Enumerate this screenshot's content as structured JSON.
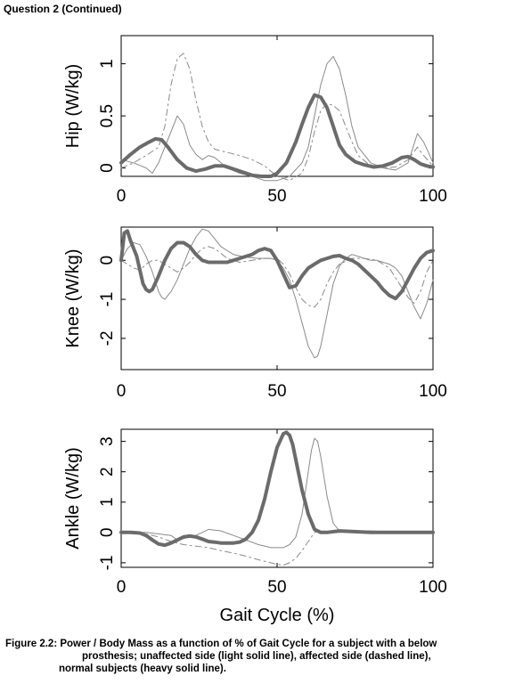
{
  "heading": "Question 2 (Continued)",
  "caption": {
    "line1": "Figure 2.2: Power / Body Mass as a function of % of Gait Cycle for a subject with a below",
    "line2": "prosthesis; unaffected side (light solid line), affected side (dashed line),",
    "line3": "normal subjects (heavy solid line)."
  },
  "colors": {
    "normal": "#6b6b6b",
    "unaffected": "#8a8a8a",
    "affected": "#8a8a8a"
  },
  "chart_data": [
    {
      "type": "line",
      "ylabel": "Hip (W/kg)",
      "xlabel": "",
      "xlim": [
        0,
        100
      ],
      "ylim": [
        -0.08,
        1.27
      ],
      "xticks": [
        0,
        50,
        100
      ],
      "xtick_labels": [
        "0",
        "50",
        "100"
      ],
      "yticks": [
        0,
        0.5,
        1
      ],
      "ytick_labels": [
        "0",
        "0.5",
        "1"
      ],
      "series": [
        {
          "key": "normal",
          "x": [
            0,
            3,
            6,
            9,
            11,
            13,
            15,
            18,
            21,
            24,
            27,
            30,
            33,
            36,
            39,
            42,
            45,
            48,
            50,
            53,
            56,
            58,
            60,
            62,
            64,
            66,
            68,
            70,
            72,
            75,
            78,
            81,
            84,
            87,
            90,
            92,
            94,
            96,
            98,
            100
          ],
          "values": [
            0.05,
            0.13,
            0.2,
            0.25,
            0.28,
            0.27,
            0.2,
            0.08,
            0.0,
            -0.03,
            -0.01,
            0.02,
            0.02,
            -0.01,
            -0.04,
            -0.07,
            -0.08,
            -0.08,
            -0.05,
            0.05,
            0.25,
            0.42,
            0.58,
            0.7,
            0.68,
            0.58,
            0.4,
            0.22,
            0.13,
            0.06,
            0.03,
            0.01,
            0.02,
            0.05,
            0.1,
            0.11,
            0.08,
            0.04,
            0.02,
            0.01
          ]
        },
        {
          "key": "unaffected",
          "x": [
            0,
            4,
            8,
            10,
            12,
            14,
            16,
            18,
            20,
            22,
            24,
            26,
            28,
            30,
            32,
            34,
            38,
            42,
            46,
            50,
            54,
            58,
            60,
            62,
            64,
            66,
            68,
            70,
            72,
            74,
            76,
            80,
            84,
            88,
            92,
            95,
            97,
            100
          ],
          "values": [
            0.08,
            0.05,
            0.0,
            -0.05,
            0.05,
            0.2,
            0.35,
            0.5,
            0.42,
            0.22,
            0.13,
            0.08,
            0.12,
            0.1,
            0.05,
            0.0,
            -0.05,
            -0.08,
            -0.12,
            -0.12,
            -0.08,
            0.05,
            0.2,
            0.5,
            0.8,
            1.0,
            1.07,
            0.95,
            0.7,
            0.4,
            0.2,
            0.05,
            0.0,
            -0.02,
            0.05,
            0.33,
            0.25,
            0.05
          ]
        },
        {
          "key": "affected",
          "x": [
            0,
            4,
            8,
            12,
            14,
            16,
            18,
            20,
            22,
            24,
            26,
            28,
            30,
            34,
            38,
            42,
            46,
            50,
            54,
            58,
            60,
            62,
            64,
            66,
            68,
            70,
            72,
            74,
            76,
            80,
            84,
            88,
            92,
            95,
            97,
            100
          ],
          "values": [
            0.0,
            0.05,
            0.12,
            0.2,
            0.4,
            0.8,
            1.05,
            1.1,
            0.95,
            0.65,
            0.4,
            0.25,
            0.18,
            0.15,
            0.12,
            0.08,
            0.02,
            -0.08,
            -0.12,
            -0.05,
            0.1,
            0.35,
            0.55,
            0.62,
            0.6,
            0.55,
            0.4,
            0.25,
            0.12,
            0.02,
            0.0,
            0.01,
            0.08,
            0.2,
            0.12,
            0.02
          ]
        }
      ]
    },
    {
      "type": "line",
      "ylabel": "Knee (W/kg)",
      "xlabel": "",
      "xlim": [
        0,
        100
      ],
      "ylim": [
        -2.8,
        0.85
      ],
      "xticks": [
        0,
        50,
        100
      ],
      "xtick_labels": [
        "0",
        "50",
        "100"
      ],
      "yticks": [
        0,
        -1,
        -2
      ],
      "ytick_labels": [
        "0",
        "-1",
        "-2"
      ],
      "series": [
        {
          "key": "normal",
          "x": [
            0,
            1,
            2,
            3,
            5,
            7,
            8,
            9,
            10,
            12,
            14,
            16,
            18,
            20,
            22,
            24,
            26,
            28,
            30,
            32,
            34,
            36,
            38,
            40,
            42,
            44,
            46,
            48,
            50,
            52,
            54,
            56,
            58,
            60,
            62,
            64,
            66,
            68,
            70,
            72,
            74,
            76,
            78,
            80,
            82,
            84,
            86,
            88,
            90,
            92,
            94,
            96,
            98,
            100
          ],
          "values": [
            0.0,
            0.7,
            0.75,
            0.5,
            0.1,
            -0.6,
            -0.75,
            -0.8,
            -0.75,
            -0.4,
            0.0,
            0.3,
            0.45,
            0.45,
            0.35,
            0.15,
            0.0,
            -0.05,
            -0.05,
            -0.05,
            -0.05,
            0.0,
            0.05,
            0.1,
            0.15,
            0.25,
            0.3,
            0.25,
            0.0,
            -0.35,
            -0.7,
            -0.65,
            -0.4,
            -0.2,
            -0.1,
            0.0,
            0.05,
            0.1,
            0.12,
            0.05,
            0.0,
            -0.1,
            -0.25,
            -0.4,
            -0.55,
            -0.75,
            -0.9,
            -0.98,
            -0.8,
            -0.5,
            -0.2,
            0.05,
            0.2,
            0.25
          ]
        },
        {
          "key": "unaffected",
          "x": [
            0,
            2,
            4,
            6,
            8,
            10,
            12,
            13,
            14,
            16,
            18,
            20,
            22,
            24,
            26,
            28,
            30,
            32,
            36,
            40,
            44,
            48,
            50,
            52,
            54,
            56,
            58,
            60,
            62,
            63,
            64,
            66,
            68,
            70,
            72,
            74,
            76,
            78,
            80,
            82,
            84,
            86,
            88,
            90,
            92,
            94,
            96,
            98,
            100
          ],
          "values": [
            0.0,
            0.3,
            0.45,
            0.4,
            0.1,
            -0.3,
            -0.8,
            -0.95,
            -1.0,
            -0.8,
            -0.5,
            -0.1,
            0.3,
            0.6,
            0.8,
            0.75,
            0.55,
            0.35,
            0.15,
            0.08,
            0.05,
            0.05,
            0.0,
            -0.2,
            -0.5,
            -1.0,
            -1.6,
            -2.2,
            -2.5,
            -2.45,
            -2.2,
            -1.4,
            -0.6,
            -0.15,
            0.05,
            0.15,
            0.1,
            0.05,
            0.0,
            0.0,
            -0.05,
            -0.1,
            -0.2,
            -0.4,
            -0.8,
            -1.2,
            -1.5,
            -1.1,
            -0.5
          ]
        },
        {
          "key": "affected",
          "x": [
            0,
            2,
            4,
            6,
            8,
            10,
            12,
            14,
            16,
            18,
            20,
            22,
            24,
            26,
            28,
            30,
            34,
            38,
            42,
            46,
            50,
            52,
            54,
            56,
            58,
            60,
            62,
            64,
            66,
            68,
            70,
            74,
            78,
            82,
            86,
            88,
            90,
            92,
            94,
            96,
            98,
            100
          ],
          "values": [
            0.0,
            -0.1,
            -0.2,
            -0.25,
            -0.1,
            0.0,
            0.0,
            -0.1,
            -0.2,
            -0.3,
            -0.2,
            -0.05,
            0.15,
            0.3,
            0.35,
            0.3,
            0.05,
            -0.05,
            0.0,
            0.05,
            0.05,
            -0.1,
            -0.35,
            -0.7,
            -1.0,
            -1.15,
            -1.2,
            -1.0,
            -0.6,
            -0.3,
            -0.1,
            0.05,
            0.05,
            0.0,
            -0.2,
            -0.45,
            -0.7,
            -0.95,
            -1.1,
            -0.8,
            -0.3,
            0.0
          ]
        }
      ]
    },
    {
      "type": "line",
      "ylabel": "Ankle (W/kg)",
      "xlabel": "Gait Cycle (%)",
      "xlim": [
        0,
        100
      ],
      "ylim": [
        -1.15,
        3.4
      ],
      "xticks": [
        0,
        50,
        100
      ],
      "xtick_labels": [
        "0",
        "50",
        "100"
      ],
      "yticks": [
        3,
        2,
        1,
        0,
        -1
      ],
      "ytick_labels": [
        "3",
        "2",
        "1",
        "0",
        "-1"
      ],
      "series": [
        {
          "key": "normal",
          "x": [
            0,
            3,
            6,
            8,
            10,
            12,
            14,
            16,
            18,
            20,
            22,
            24,
            26,
            28,
            30,
            32,
            34,
            36,
            38,
            40,
            42,
            44,
            46,
            48,
            50,
            52,
            53,
            54,
            55,
            56,
            58,
            60,
            62,
            64,
            66,
            70,
            80,
            90,
            100
          ],
          "values": [
            0.0,
            0.0,
            -0.02,
            -0.1,
            -0.25,
            -0.38,
            -0.42,
            -0.35,
            -0.25,
            -0.15,
            -0.12,
            -0.15,
            -0.22,
            -0.3,
            -0.32,
            -0.35,
            -0.35,
            -0.35,
            -0.32,
            -0.22,
            0.0,
            0.4,
            1.1,
            2.0,
            2.8,
            3.25,
            3.3,
            3.2,
            2.9,
            2.4,
            1.4,
            0.6,
            0.1,
            0.0,
            0.0,
            0.05,
            0.0,
            0.0,
            0.0
          ]
        },
        {
          "key": "unaffected",
          "x": [
            0,
            4,
            8,
            12,
            16,
            18,
            20,
            24,
            28,
            32,
            36,
            40,
            44,
            48,
            52,
            54,
            56,
            58,
            60,
            61,
            62,
            63,
            64,
            66,
            68,
            70,
            80,
            90,
            100
          ],
          "values": [
            0.0,
            0.0,
            0.0,
            -0.05,
            -0.1,
            -0.25,
            -0.2,
            -0.1,
            0.1,
            0.05,
            -0.1,
            -0.25,
            -0.4,
            -0.5,
            -0.5,
            -0.4,
            -0.15,
            0.6,
            2.0,
            2.7,
            3.1,
            3.0,
            2.5,
            1.2,
            0.3,
            0.05,
            0.05,
            0.0,
            0.0
          ]
        },
        {
          "key": "affected",
          "x": [
            0,
            4,
            8,
            12,
            16,
            20,
            24,
            28,
            32,
            36,
            40,
            44,
            48,
            50,
            52,
            54,
            56,
            58,
            60,
            62,
            64,
            66,
            68,
            70,
            80,
            90,
            100
          ],
          "values": [
            0.0,
            -0.02,
            -0.05,
            -0.15,
            -0.3,
            -0.4,
            -0.45,
            -0.5,
            -0.6,
            -0.68,
            -0.78,
            -0.9,
            -1.0,
            -1.05,
            -1.08,
            -1.0,
            -0.85,
            -0.6,
            -0.3,
            0.0,
            0.05,
            0.0,
            0.0,
            0.0,
            0.0,
            0.0,
            0.0
          ]
        }
      ]
    }
  ]
}
